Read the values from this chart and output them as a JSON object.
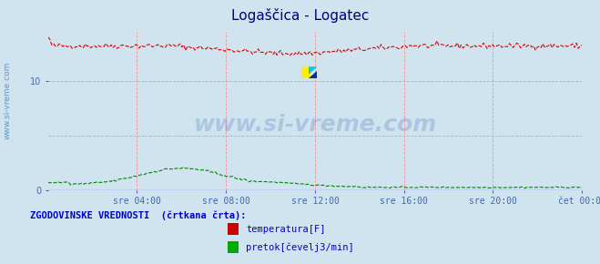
{
  "title": "Logaščica - Logatec",
  "title_color": "#000080",
  "bg_color": "#d0e4f0",
  "plot_bg_color": "#d0e4f0",
  "grid_color": "#ff8888",
  "ylim": [
    0,
    14.5
  ],
  "yticks": [
    0,
    10
  ],
  "tick_color": "#4466aa",
  "xtick_labels": [
    "sre 04:00",
    "sre 08:00",
    "sre 12:00",
    "sre 16:00",
    "sre 20:00",
    "čet 00:00"
  ],
  "watermark": "www.si-vreme.com",
  "watermark_color": "#7799cc",
  "legend_text": "ZGODOVINSKE VREDNOSTI  (črtkana črta):",
  "legend_color": "#0000cc",
  "legend_items": [
    "temperatura[F]",
    "pretok[čevelj3/min]"
  ],
  "legend_item_colors": [
    "#cc0000",
    "#00aa00"
  ],
  "sidebar_text": "www.si-vreme.com",
  "sidebar_color": "#4488cc",
  "temp_color": "#dd0000",
  "flow_color": "#008800",
  "zero_line_color": "#8888ff",
  "n_points": 288
}
